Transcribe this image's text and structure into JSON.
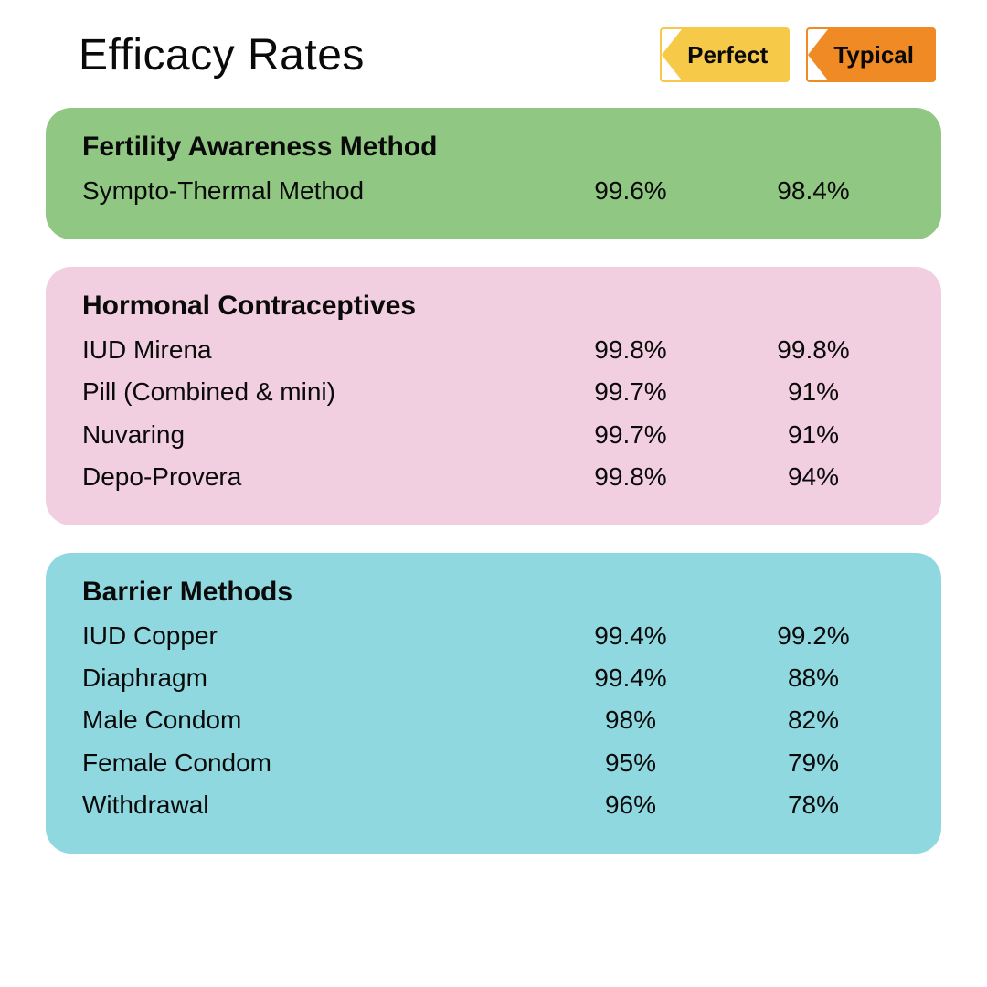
{
  "title": "Efficacy Rates",
  "legend": {
    "perfect": {
      "label": "Perfect",
      "fill": "#f7c948",
      "border": "#f7c948"
    },
    "typical": {
      "label": "Typical",
      "fill": "#f08a24",
      "border": "#f08a24"
    }
  },
  "colors": {
    "page_bg": "#ffffff",
    "text": "#0a0a0a"
  },
  "sections": [
    {
      "title": "Fertility Awareness Method",
      "bg": "#90c782",
      "rows": [
        {
          "method": "Sympto-Thermal Method",
          "perfect": "99.6%",
          "typical": "98.4%"
        }
      ]
    },
    {
      "title": "Hormonal Contraceptives",
      "bg": "#f2cfe0",
      "rows": [
        {
          "method": "IUD Mirena",
          "perfect": "99.8%",
          "typical": "99.8%"
        },
        {
          "method": "Pill (Combined & mini)",
          "perfect": "99.7%",
          "typical": "91%"
        },
        {
          "method": "Nuvaring",
          "perfect": "99.7%",
          "typical": "91%"
        },
        {
          "method": "Depo-Provera",
          "perfect": "99.8%",
          "typical": "94%"
        }
      ]
    },
    {
      "title": "Barrier Methods",
      "bg": "#8fd8e0",
      "rows": [
        {
          "method": "IUD Copper",
          "perfect": "99.4%",
          "typical": "99.2%"
        },
        {
          "method": "Diaphragm",
          "perfect": "99.4%",
          "typical": "88%"
        },
        {
          "method": "Male Condom",
          "perfect": "98%",
          "typical": "82%"
        },
        {
          "method": "Female Condom",
          "perfect": "95%",
          "typical": "79%"
        },
        {
          "method": "Withdrawal",
          "perfect": "96%",
          "typical": "78%"
        }
      ]
    }
  ]
}
